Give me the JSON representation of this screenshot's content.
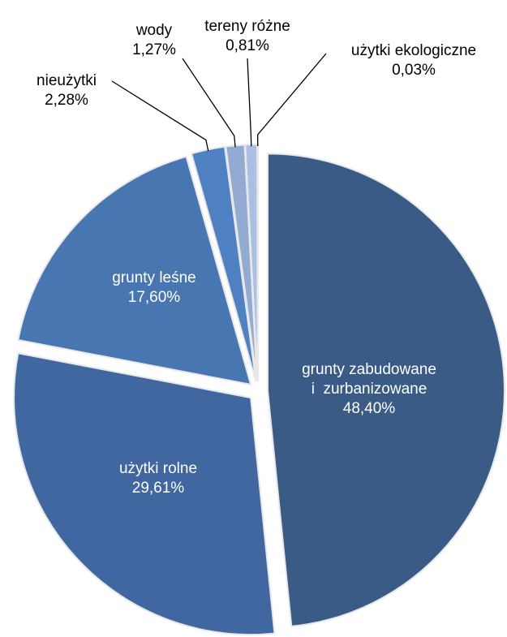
{
  "chart_data": {
    "type": "pie",
    "categories": [
      "grunty zabudowane i  zurbanizowane",
      "użytki rolne",
      "grunty leśne",
      "nieużytki",
      "wody",
      "tereny różne",
      "użytki ekologiczne"
    ],
    "values": [
      48.4,
      29.61,
      17.6,
      2.28,
      1.27,
      0.81,
      0.03
    ],
    "value_labels": [
      "48,40%",
      "29,61%",
      "17,60%",
      "2,28%",
      "1,27%",
      "0,81%",
      "0,03%"
    ],
    "colors": [
      "#3b5b87",
      "#4067a0",
      "#4876b0",
      "#4f80c2",
      "#93aad3",
      "#aabfe2",
      "#c3d2ec"
    ]
  }
}
